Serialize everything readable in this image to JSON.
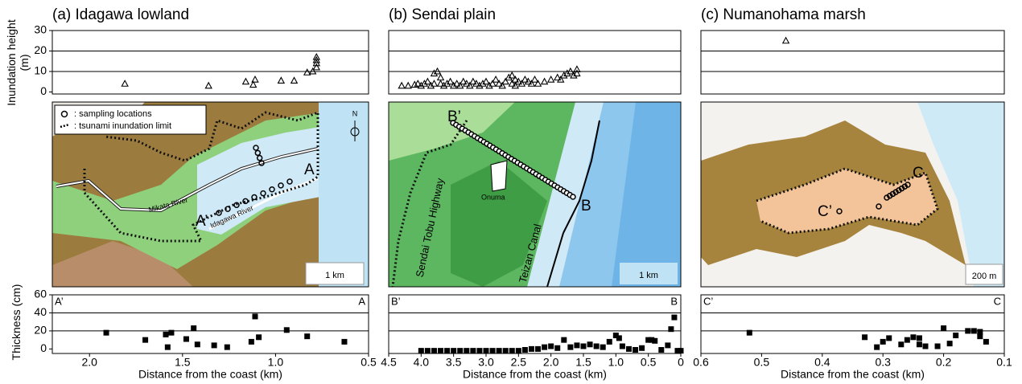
{
  "chart_data": [
    {
      "type": "scatter",
      "title": "(a) Idagawa lowland",
      "ylabel": "Inundation height (m)",
      "marker": "triangle",
      "xlim": [
        2.2,
        0.5
      ],
      "ylim": [
        -1,
        30
      ],
      "yticks": [
        0,
        10,
        20,
        30
      ],
      "ygrid": [
        10,
        20
      ],
      "x": [
        1.81,
        1.36,
        1.16,
        1.12,
        1.11,
        0.97,
        0.9,
        0.83,
        0.8,
        0.78,
        0.78,
        0.78,
        0.78
      ],
      "values": [
        4,
        3,
        5,
        3.5,
        6,
        5.5,
        5.5,
        9.5,
        10,
        17,
        15.5,
        14,
        12
      ]
    },
    {
      "type": "scatter",
      "ylabel": "Thickness (cm)",
      "xlabel": "Distance from the coast (km)",
      "marker": "square",
      "corner_labels": [
        "A’",
        "A"
      ],
      "xlim": [
        2.2,
        0.5
      ],
      "xticks": [
        {
          "value": 2,
          "label": "2.0"
        },
        1.5,
        {
          "value": 1,
          "label": "1.0"
        },
        0.5
      ],
      "ylim": [
        -5,
        60
      ],
      "yticks": [
        0,
        20,
        40,
        60
      ],
      "ygrid": [
        20,
        40
      ],
      "x": [
        1.91,
        1.7,
        1.59,
        1.56,
        1.58,
        1.48,
        1.44,
        1.42,
        1.33,
        1.26,
        1.13,
        1.11,
        1.09,
        0.94,
        0.83,
        0.63
      ],
      "values": [
        18,
        10,
        16,
        18,
        2,
        11,
        23,
        5,
        4,
        2,
        8,
        36,
        13,
        21,
        14,
        8
      ]
    },
    {
      "type": "scatter",
      "title": "(b) Sendai plain",
      "marker": "triangle",
      "xlim": [
        4.5,
        0
      ],
      "ylim": [
        -1,
        30
      ],
      "ygrid": [
        10,
        20
      ],
      "x": [
        4.3,
        4.2,
        4.1,
        4.05,
        4.0,
        3.95,
        3.9,
        3.85,
        3.8,
        3.8,
        3.75,
        3.7,
        3.7,
        3.65,
        3.6,
        3.55,
        3.5,
        3.45,
        3.4,
        3.35,
        3.3,
        3.25,
        3.2,
        3.15,
        3.1,
        3.05,
        3.0,
        2.95,
        2.9,
        2.85,
        2.8,
        2.75,
        2.7,
        2.65,
        2.6,
        2.6,
        2.55,
        2.55,
        2.5,
        2.45,
        2.4,
        2.35,
        2.3,
        2.25,
        2.2,
        2.1,
        2.0,
        1.9,
        1.85,
        1.8,
        1.75,
        1.7,
        1.65,
        1.6,
        1.6
      ],
      "values": [
        3,
        3,
        3.5,
        4,
        3,
        4,
        5,
        3,
        4,
        9,
        10,
        7,
        4,
        3,
        4,
        5,
        3,
        4,
        3,
        5,
        4,
        3,
        5,
        4,
        3,
        4,
        5,
        3,
        4,
        6,
        4,
        3,
        5,
        7,
        8,
        4,
        6,
        3,
        5,
        4,
        6,
        5,
        4,
        6,
        4,
        5,
        6,
        7,
        6,
        8,
        9,
        10,
        8,
        11,
        9
      ]
    },
    {
      "type": "scatter",
      "xlabel": "Distance from the coast (km)",
      "marker": "square",
      "corner_labels": [
        "B’",
        "B"
      ],
      "xlim": [
        4.5,
        0
      ],
      "xticks": [
        4.5,
        {
          "value": 4,
          "label": "4.0"
        },
        3.5,
        {
          "value": 3,
          "label": "3.0"
        },
        2.5,
        {
          "value": 2,
          "label": "2.0"
        },
        1.5,
        {
          "value": 1,
          "label": "1.0"
        },
        0.5,
        0
      ],
      "ylim": [
        -5,
        60
      ],
      "ygrid": [
        20,
        40
      ],
      "x": [
        4.0,
        3.9,
        3.8,
        3.7,
        3.6,
        3.5,
        3.4,
        3.3,
        3.2,
        3.1,
        3.0,
        2.9,
        2.8,
        2.7,
        2.6,
        2.5,
        2.4,
        2.3,
        2.2,
        2.1,
        2.0,
        1.9,
        1.8,
        1.7,
        1.6,
        1.5,
        1.4,
        1.3,
        1.2,
        1.1,
        1.0,
        0.95,
        0.9,
        0.8,
        0.7,
        0.6,
        0.5,
        0.45,
        0.4,
        0.3,
        0.2,
        0.15,
        0.1,
        0.05,
        0
      ],
      "values": [
        -2,
        -2,
        -2,
        -2,
        -2,
        -2,
        -2,
        -2,
        -2,
        -2,
        -2,
        -2,
        -2,
        -2,
        -2,
        -2,
        -1,
        0,
        0,
        2,
        3,
        1,
        10,
        2,
        4,
        3,
        5,
        3,
        2,
        8,
        15,
        12,
        3,
        0,
        -1,
        1,
        10,
        10,
        9,
        -1,
        4,
        22,
        35,
        -2,
        -2
      ]
    },
    {
      "type": "scatter",
      "title": "(c) Numanohama marsh",
      "marker": "triangle",
      "xlim": [
        0.6,
        0.1
      ],
      "ylim": [
        -1,
        30
      ],
      "ygrid": [
        10,
        20
      ],
      "x": [
        0.46
      ],
      "values": [
        25
      ]
    },
    {
      "type": "scatter",
      "xlabel": "Distance from the coast (km)",
      "marker": "square",
      "corner_labels": [
        "C’",
        "C"
      ],
      "xlim": [
        0.6,
        0.1
      ],
      "xticks": [
        0.6,
        0.5,
        0.4,
        0.3,
        0.2,
        0.1
      ],
      "ylim": [
        -5,
        60
      ],
      "ygrid": [
        20,
        40
      ],
      "x": [
        0.52,
        0.33,
        0.31,
        0.3,
        0.29,
        0.27,
        0.26,
        0.25,
        0.24,
        0.24,
        0.23,
        0.21,
        0.2,
        0.19,
        0.18,
        0.16,
        0.15,
        0.14,
        0.14,
        0.13
      ],
      "values": [
        18,
        13,
        2,
        8,
        12,
        5,
        10,
        13,
        12,
        5,
        3,
        3,
        23,
        6,
        15,
        20,
        20,
        14,
        19,
        8
      ]
    }
  ],
  "maps": [
    {
      "legend_points": ": sampling locations",
      "legend_limit": ": tsunami inundation limit",
      "north": "N",
      "end": "A",
      "start": "A’",
      "river1": "Mikata River",
      "river2": "Idagawa River",
      "scale": "1 km"
    },
    {
      "start": "B’",
      "end": "B",
      "lake": "Onuma",
      "road": "Sendai Tobu Highway",
      "canal": "Teizan Canal",
      "scale": "1 km"
    },
    {
      "end": "C",
      "start": "C’",
      "scale": "200 m"
    }
  ]
}
